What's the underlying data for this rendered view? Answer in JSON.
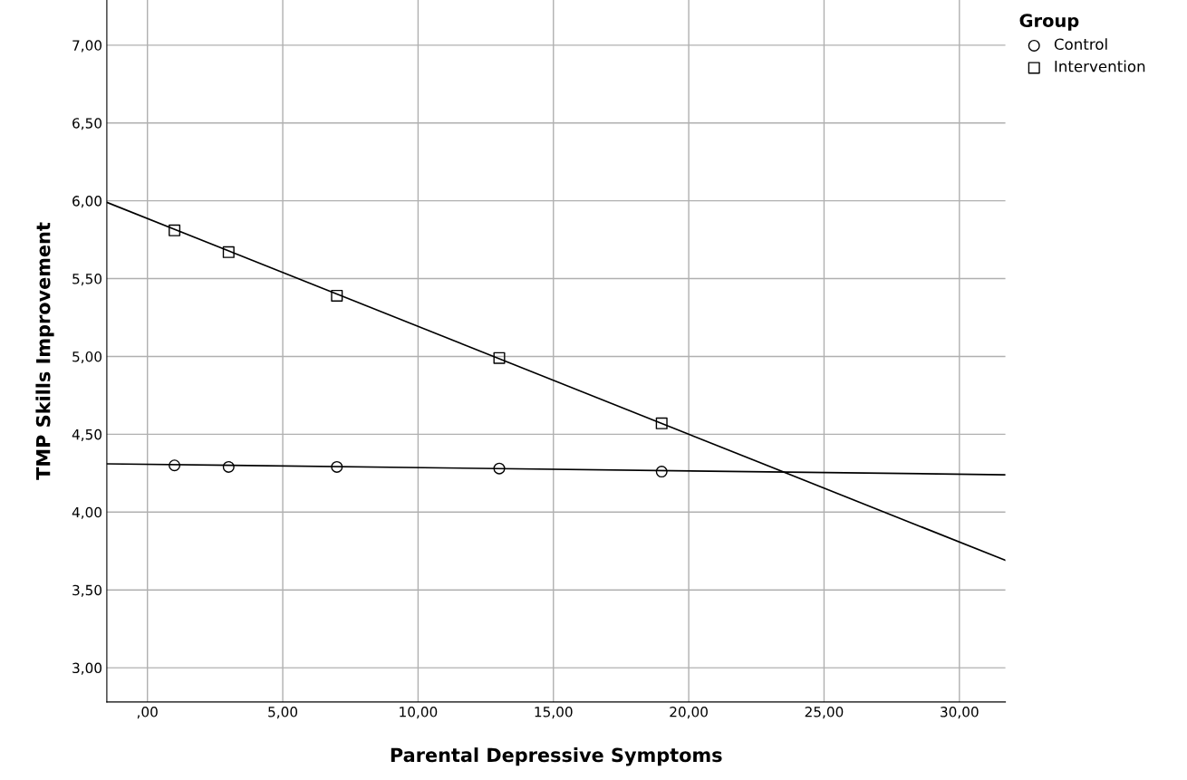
{
  "chart_data": {
    "type": "scatter",
    "xlabel": "Parental Depressive Symptoms",
    "ylabel": "TMP Skills Improvement",
    "legend_title": "Group",
    "legend": "top right",
    "grid": true,
    "xlim": [
      -1.5,
      31.7
    ],
    "ylim": [
      2.78,
      7.29
    ],
    "xticks": [
      {
        "value": 0,
        "label": ",00"
      },
      {
        "value": 5,
        "label": "5,00"
      },
      {
        "value": 10,
        "label": "10,00"
      },
      {
        "value": 15,
        "label": "15,00"
      },
      {
        "value": 20,
        "label": "20,00"
      },
      {
        "value": 25,
        "label": "25,00"
      },
      {
        "value": 30,
        "label": "30,00"
      }
    ],
    "yticks": [
      {
        "value": 3,
        "label": "3,00"
      },
      {
        "value": 3.5,
        "label": "3,50"
      },
      {
        "value": 4,
        "label": "4,00"
      },
      {
        "value": 4.5,
        "label": "4,50"
      },
      {
        "value": 5,
        "label": "5,00"
      },
      {
        "value": 5.5,
        "label": "5,50"
      },
      {
        "value": 6,
        "label": "6,00"
      },
      {
        "value": 6.5,
        "label": "6,50"
      },
      {
        "value": 7,
        "label": "7,00"
      }
    ],
    "series": [
      {
        "name": "Control",
        "marker": "circle",
        "color": "#000000",
        "x": [
          1,
          3,
          7,
          13,
          19
        ],
        "values": [
          4.3,
          4.29,
          4.29,
          4.28,
          4.26
        ]
      },
      {
        "name": "Intervention",
        "marker": "square",
        "color": "#000000",
        "x": [
          1,
          3,
          7,
          13,
          19
        ],
        "values": [
          5.81,
          5.67,
          5.39,
          4.99,
          4.57
        ]
      },
      {
        "type": "line",
        "marker": "none",
        "color": "#000000",
        "x": [
          -1.5,
          31.7
        ],
        "values": [
          4.31,
          4.24
        ]
      },
      {
        "type": "line",
        "marker": "none",
        "color": "#000000",
        "x": [
          -1.5,
          31.7
        ],
        "values": [
          5.99,
          3.69
        ]
      }
    ]
  }
}
